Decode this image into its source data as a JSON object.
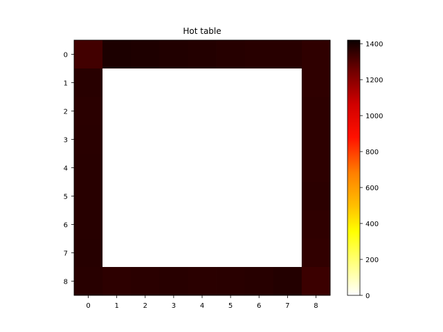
{
  "chart_data": {
    "type": "heatmap",
    "title": "Hot table",
    "xlabel": "",
    "ylabel": "",
    "x_ticks": [
      "0",
      "1",
      "2",
      "3",
      "4",
      "5",
      "6",
      "7",
      "8"
    ],
    "y_ticks": [
      "0",
      "1",
      "2",
      "3",
      "4",
      "5",
      "6",
      "7",
      "8"
    ],
    "colormap": "hot_r",
    "vmin": 0,
    "vmax": 1420,
    "colorbar_ticks": [
      0,
      200,
      400,
      600,
      800,
      1000,
      1200,
      1400
    ],
    "colorbar_tick_labels": [
      "0",
      "200",
      "400",
      "600",
      "800",
      "1000",
      "1200",
      "1400"
    ],
    "values": [
      [
        1340,
        1420,
        1415,
        1410,
        1405,
        1400,
        1395,
        1395,
        1380
      ],
      [
        1395,
        0,
        0,
        0,
        0,
        0,
        0,
        0,
        1380
      ],
      [
        1390,
        0,
        0,
        0,
        0,
        0,
        0,
        0,
        1385
      ],
      [
        1392,
        0,
        0,
        0,
        0,
        0,
        0,
        0,
        1385
      ],
      [
        1395,
        0,
        0,
        0,
        0,
        0,
        0,
        0,
        1385
      ],
      [
        1395,
        0,
        0,
        0,
        0,
        0,
        0,
        0,
        1388
      ],
      [
        1398,
        0,
        0,
        0,
        0,
        0,
        0,
        0,
        1380
      ],
      [
        1400,
        0,
        0,
        0,
        0,
        0,
        0,
        0,
        1375
      ],
      [
        1395,
        1385,
        1390,
        1395,
        1390,
        1392,
        1398,
        1405,
        1355
      ]
    ]
  }
}
